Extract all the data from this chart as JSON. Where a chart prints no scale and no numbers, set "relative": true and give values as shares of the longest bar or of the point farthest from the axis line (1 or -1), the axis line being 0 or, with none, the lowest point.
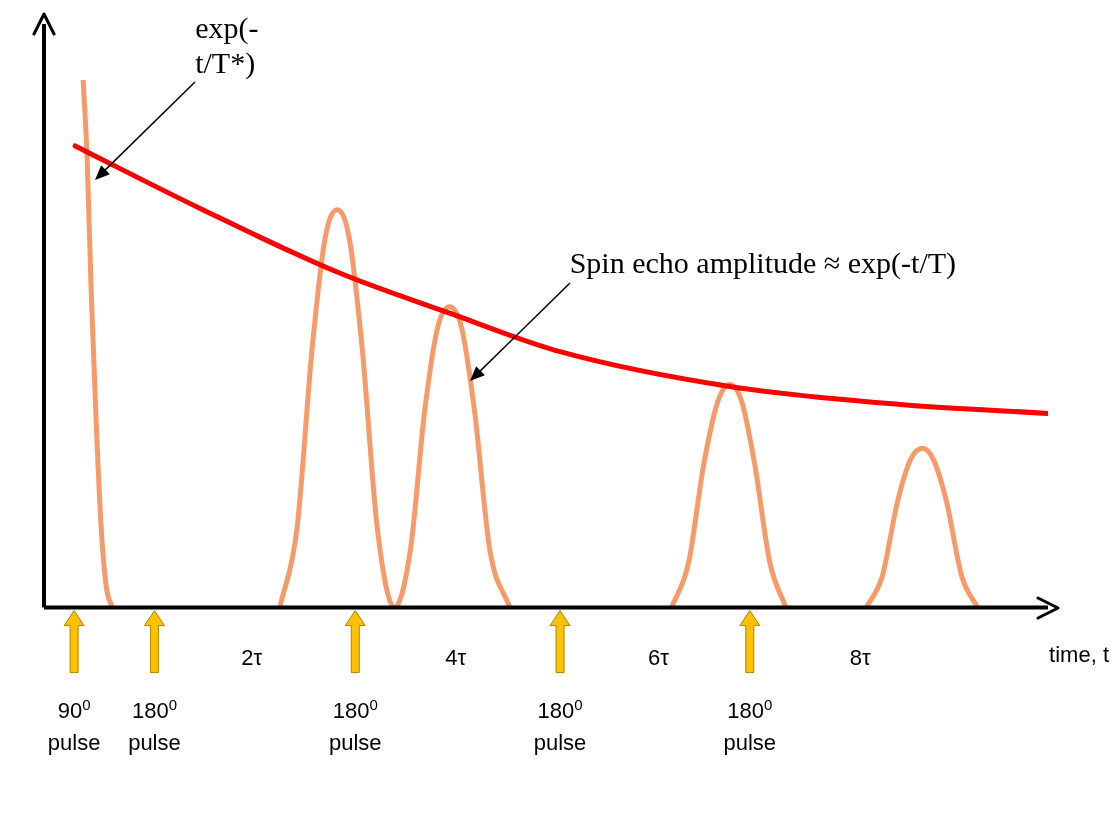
{
  "chart_data": {
    "type": "line",
    "relative": true,
    "xlabel": "time, t",
    "xlim": [
      0,
      10
    ],
    "xticks": [
      {
        "value": 2.07,
        "label": "2τ"
      },
      {
        "value": 4.1,
        "label": "4τ"
      },
      {
        "value": 6.12,
        "label": "6τ"
      },
      {
        "value": 8.13,
        "label": "8τ"
      }
    ],
    "tick_labels": "x",
    "grid": false,
    "legend": false,
    "marker": "none",
    "annotations": [
      {
        "text": "exp(-t/T*)",
        "x": 0.51,
        "y": 0.81
      },
      {
        "text": "Spin echo amplitude ≈ exp(-t/T)",
        "x": 4.24,
        "y": 0.43
      }
    ],
    "ref_lines": [
      {
        "axis": "x",
        "value": 0.3,
        "label": "90$^{0}$ pulse",
        "color": "#ffc000"
      },
      {
        "axis": "x",
        "value": 1.1,
        "label": "180$^{0}$ pulse",
        "color": "#ffc000"
      },
      {
        "axis": "x",
        "value": 3.1,
        "label": "180$^{0}$ pulse",
        "color": "#ffc000"
      },
      {
        "axis": "x",
        "value": 5.14,
        "label": "180$^{0}$ pulse",
        "color": "#ffc000"
      },
      {
        "axis": "x",
        "value": 7.03,
        "label": "180$^{0}$ pulse",
        "color": "#ffc000"
      }
    ],
    "series": [
      {
        "color": "#ff0000",
        "x": [
          0.31,
          1.55,
          2.92,
          4.04,
          5.14,
          6.83,
          8.53,
          10
        ],
        "values": [
          0.875,
          0.757,
          0.636,
          0.558,
          0.485,
          0.419,
          0.385,
          0.368
        ]
      },
      {
        "color": "#f79a6a",
        "x": [
          0.39,
          0.43,
          0.47,
          0.52,
          0.57,
          0.62,
          0.68,
          1.5,
          2.35,
          2.52,
          2.67,
          2.8,
          2.92,
          3.04,
          3.17,
          3.32,
          3.49,
          3.65,
          3.79,
          3.92,
          4.04,
          4.16,
          4.29,
          4.44,
          4.64,
          5.5,
          6.25,
          6.42,
          6.57,
          6.71,
          6.83,
          6.95,
          7.08,
          7.23,
          7.39,
          8.0,
          8.19,
          8.35,
          8.5,
          8.63,
          8.75,
          8.86,
          8.99,
          9.14,
          9.3
        ],
        "values": [
          1,
          0.85,
          0.6,
          0.35,
          0.15,
          0.04,
          0,
          null,
          0,
          0.15,
          0.49,
          0.7,
          0.754,
          0.7,
          0.49,
          0.15,
          0,
          0.11,
          0.37,
          0.53,
          0.57,
          0.53,
          0.37,
          0.11,
          0,
          null,
          0,
          0.085,
          0.27,
          0.39,
          0.423,
          0.39,
          0.27,
          0.085,
          0,
          null,
          0,
          0.06,
          0.2,
          0.28,
          0.302,
          0.28,
          0.2,
          0.06,
          0
        ]
      }
    ]
  }
}
